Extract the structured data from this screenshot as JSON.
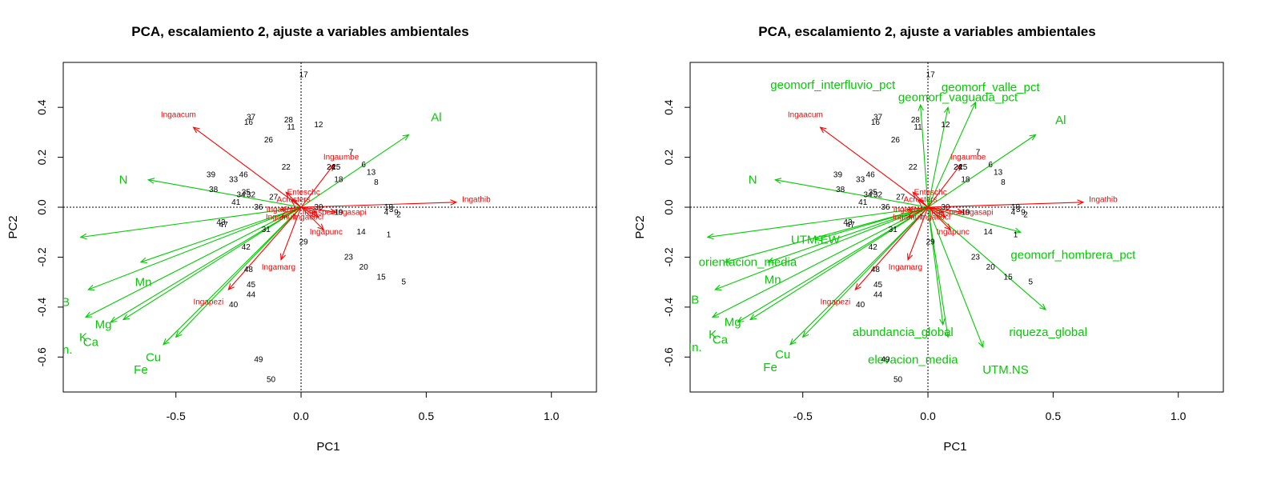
{
  "colors": {
    "species": "#ff0000",
    "environment": "#00cc00",
    "sites": "#000000",
    "frame": "#000000"
  },
  "chart_data": [
    {
      "type": "scatter",
      "title": "PCA, escalamiento 2, ajuste a variables ambientales",
      "xlabel": "PC1",
      "ylabel": "PC2",
      "xlim": [
        -0.95,
        1.18
      ],
      "ylim": [
        -0.74,
        0.58
      ],
      "xticks": [
        "-0.5",
        "0.0",
        "0.5",
        "1.0"
      ],
      "yticks": [
        "-0.6",
        "-0.4",
        "-0.2",
        "0.0",
        "0.2",
        "0.4"
      ],
      "reference_lines": [
        0,
        0
      ],
      "sites": [
        {
          "label": "17",
          "x": 0.01,
          "y": 0.53
        },
        {
          "label": "37",
          "x": -0.2,
          "y": 0.36
        },
        {
          "label": "16",
          "x": -0.21,
          "y": 0.34
        },
        {
          "label": "28",
          "x": -0.05,
          "y": 0.35
        },
        {
          "label": "11",
          "x": -0.04,
          "y": 0.32
        },
        {
          "label": "12",
          "x": 0.07,
          "y": 0.33
        },
        {
          "label": "26",
          "x": -0.13,
          "y": 0.27
        },
        {
          "label": "7",
          "x": 0.2,
          "y": 0.22
        },
        {
          "label": "22",
          "x": -0.06,
          "y": 0.16
        },
        {
          "label": "24",
          "x": 0.12,
          "y": 0.16
        },
        {
          "label": "25",
          "x": 0.14,
          "y": 0.16
        },
        {
          "label": "6",
          "x": 0.25,
          "y": 0.17
        },
        {
          "label": "13",
          "x": 0.28,
          "y": 0.14
        },
        {
          "label": "18",
          "x": 0.15,
          "y": 0.11
        },
        {
          "label": "8",
          "x": 0.3,
          "y": 0.1
        },
        {
          "label": "39",
          "x": -0.36,
          "y": 0.13
        },
        {
          "label": "46",
          "x": -0.23,
          "y": 0.13
        },
        {
          "label": "33",
          "x": -0.27,
          "y": 0.11
        },
        {
          "label": "38",
          "x": -0.35,
          "y": 0.07
        },
        {
          "label": "35",
          "x": -0.22,
          "y": 0.06
        },
        {
          "label": "32",
          "x": -0.2,
          "y": 0.05
        },
        {
          "label": "34",
          "x": -0.24,
          "y": 0.05
        },
        {
          "label": "41",
          "x": -0.26,
          "y": 0.02
        },
        {
          "label": "36",
          "x": -0.17,
          "y": 0.0
        },
        {
          "label": "27",
          "x": -0.11,
          "y": 0.04
        },
        {
          "label": "30",
          "x": 0.07,
          "y": 0.0
        },
        {
          "label": "10",
          "x": 0.35,
          "y": 0.0
        },
        {
          "label": "4",
          "x": 0.34,
          "y": -0.02
        },
        {
          "label": "9",
          "x": 0.38,
          "y": -0.02
        },
        {
          "label": "3",
          "x": 0.36,
          "y": -0.01
        },
        {
          "label": "2",
          "x": 0.39,
          "y": -0.03
        },
        {
          "label": "19",
          "x": 0.15,
          "y": -0.02
        },
        {
          "label": "43",
          "x": -0.32,
          "y": -0.06
        },
        {
          "label": "47",
          "x": -0.31,
          "y": -0.07
        },
        {
          "label": "31",
          "x": -0.14,
          "y": -0.09
        },
        {
          "label": "14",
          "x": 0.24,
          "y": -0.1
        },
        {
          "label": "1",
          "x": 0.35,
          "y": -0.11
        },
        {
          "label": "29",
          "x": 0.01,
          "y": -0.14
        },
        {
          "label": "42",
          "x": -0.22,
          "y": -0.16
        },
        {
          "label": "23",
          "x": 0.19,
          "y": -0.2
        },
        {
          "label": "20",
          "x": 0.25,
          "y": -0.24
        },
        {
          "label": "15",
          "x": 0.32,
          "y": -0.28
        },
        {
          "label": "5",
          "x": 0.41,
          "y": -0.3
        },
        {
          "label": "48",
          "x": -0.21,
          "y": -0.25
        },
        {
          "label": "45",
          "x": -0.2,
          "y": -0.31
        },
        {
          "label": "44",
          "x": -0.2,
          "y": -0.35
        },
        {
          "label": "40",
          "x": -0.27,
          "y": -0.39
        },
        {
          "label": "49",
          "x": -0.17,
          "y": -0.61
        },
        {
          "label": "50",
          "x": -0.12,
          "y": -0.69
        }
      ],
      "species": [
        {
          "name": "Ingaacum",
          "x": -0.43,
          "y": 0.32,
          "lx": -0.49,
          "ly": 0.37
        },
        {
          "name": "Ingaumbe",
          "x": 0.13,
          "y": 0.17,
          "lx": 0.16,
          "ly": 0.2
        },
        {
          "name": "Ingathib",
          "x": 0.62,
          "y": 0.02,
          "lx": 0.7,
          "ly": 0.03
        },
        {
          "name": "Ingapunc",
          "x": 0.09,
          "y": -0.09,
          "lx": 0.1,
          "ly": -0.1
        },
        {
          "name": "Ingamarg",
          "x": -0.08,
          "y": -0.21,
          "lx": -0.09,
          "ly": -0.24
        },
        {
          "name": "Ingapezi",
          "x": -0.29,
          "y": -0.33,
          "lx": -0.37,
          "ly": -0.38
        },
        {
          "name": "Enteschc",
          "x": -0.06,
          "y": 0.06,
          "lx": 0.01,
          "ly": 0.06
        },
        {
          "name": "Ingasapi",
          "x": 0.14,
          "y": -0.02,
          "lx": 0.2,
          "ly": -0.02
        },
        {
          "name": "Acrosters",
          "x": -0.04,
          "y": 0.03,
          "lx": -0.03,
          "ly": 0.03
        },
        {
          "name": "Ingacocl",
          "x": 0.07,
          "y": -0.04,
          "lx": 0.03,
          "ly": -0.04
        },
        {
          "name": "Ingatrorl",
          "x": -0.08,
          "y": -0.01,
          "lx": -0.08,
          "ly": -0.01
        },
        {
          "name": "Ingamult",
          "x": -0.08,
          "y": -0.04,
          "lx": -0.08,
          "ly": -0.04
        },
        {
          "name": "Ingaspec",
          "x": 0.06,
          "y": -0.02,
          "lx": 0.07,
          "ly": -0.02
        }
      ],
      "environment": [
        {
          "name": "Al",
          "x": 0.43,
          "y": 0.29,
          "lx": 0.54,
          "ly": 0.36
        },
        {
          "name": "N",
          "x": -0.61,
          "y": 0.11,
          "lx": -0.71,
          "ly": 0.11
        },
        {
          "name": "Mn",
          "x": -0.64,
          "y": -0.22,
          "lx": -0.63,
          "ly": -0.3
        },
        {
          "name": "B",
          "x": -0.85,
          "y": -0.33,
          "lx": -0.94,
          "ly": -0.38
        },
        {
          "name": "Mg",
          "x": -0.71,
          "y": -0.45,
          "lx": -0.79,
          "ly": -0.47
        },
        {
          "name": "K",
          "x": -0.86,
          "y": -0.44,
          "lx": -0.87,
          "ly": -0.52
        },
        {
          "name": "Ca",
          "x": -0.76,
          "y": -0.46,
          "lx": -0.84,
          "ly": -0.54
        },
        {
          "name": "Cu",
          "x": -0.55,
          "y": -0.55,
          "lx": -0.59,
          "ly": -0.6
        },
        {
          "name": "Fe",
          "x": -0.5,
          "y": -0.52,
          "lx": -0.64,
          "ly": -0.65
        },
        {
          "name": "In.",
          "x": -0.88,
          "y": -0.12,
          "lx": -0.94,
          "ly": -0.57
        }
      ]
    },
    {
      "type": "scatter",
      "title": "PCA, escalamiento 2, ajuste a variables ambientales",
      "xlabel": "PC1",
      "ylabel": "PC2",
      "xlim": [
        -0.95,
        1.18
      ],
      "ylim": [
        -0.74,
        0.58
      ],
      "xticks": [
        "-0.5",
        "0.0",
        "0.5",
        "1.0"
      ],
      "yticks": [
        "-0.6",
        "-0.4",
        "-0.2",
        "0.0",
        "0.2",
        "0.4"
      ],
      "reference_lines": [
        0,
        0
      ],
      "sites_same_as_chart_1": true,
      "species_same_as_chart_1": true,
      "environment": [
        {
          "name": "Al",
          "x": 0.43,
          "y": 0.29,
          "lx": 0.53,
          "ly": 0.35
        },
        {
          "name": "N",
          "x": -0.61,
          "y": 0.11,
          "lx": -0.7,
          "ly": 0.11
        },
        {
          "name": "Mn",
          "x": -0.64,
          "y": -0.22,
          "lx": -0.62,
          "ly": -0.29
        },
        {
          "name": "B",
          "x": -0.85,
          "y": -0.33,
          "lx": -0.93,
          "ly": -0.37
        },
        {
          "name": "Mg",
          "x": -0.71,
          "y": -0.45,
          "lx": -0.78,
          "ly": -0.46
        },
        {
          "name": "K",
          "x": -0.86,
          "y": -0.44,
          "lx": -0.86,
          "ly": -0.51
        },
        {
          "name": "Ca",
          "x": -0.76,
          "y": -0.46,
          "lx": -0.83,
          "ly": -0.53
        },
        {
          "name": "Cu",
          "x": -0.55,
          "y": -0.55,
          "lx": -0.58,
          "ly": -0.59
        },
        {
          "name": "Fe",
          "x": -0.5,
          "y": -0.52,
          "lx": -0.63,
          "ly": -0.64
        },
        {
          "name": "In.",
          "x": -0.88,
          "y": -0.12,
          "lx": -0.93,
          "ly": -0.56
        },
        {
          "name": "orientacion_media",
          "x": -0.81,
          "y": -0.22,
          "lx": -0.72,
          "ly": -0.22
        },
        {
          "name": "geomorf_interfluvio_pct",
          "x": -0.03,
          "y": 0.41,
          "lx": -0.38,
          "ly": 0.49
        },
        {
          "name": "geomorf_valle_pct",
          "x": 0.19,
          "y": 0.42,
          "lx": 0.25,
          "ly": 0.48
        },
        {
          "name": "geomorf_vaguada_pct",
          "x": 0.08,
          "y": 0.4,
          "lx": 0.12,
          "ly": 0.44
        },
        {
          "name": "geomorf_hombrera_pct",
          "x": 0.37,
          "y": -0.1,
          "lx": 0.58,
          "ly": -0.19
        },
        {
          "name": "abundancia_global",
          "x": 0.08,
          "y": -0.52,
          "lx": -0.1,
          "ly": -0.5
        },
        {
          "name": "riqueza_global",
          "x": 0.47,
          "y": -0.41,
          "lx": 0.48,
          "ly": -0.5
        },
        {
          "name": "elevacion_media",
          "x": 0.06,
          "y": -0.47,
          "lx": -0.06,
          "ly": -0.61
        },
        {
          "name": "UTM.NS",
          "x": 0.22,
          "y": -0.56,
          "lx": 0.31,
          "ly": -0.65
        },
        {
          "name": "UTM.EW",
          "x": -0.45,
          "y": -0.13,
          "lx": -0.45,
          "ly": -0.13
        }
      ]
    }
  ]
}
